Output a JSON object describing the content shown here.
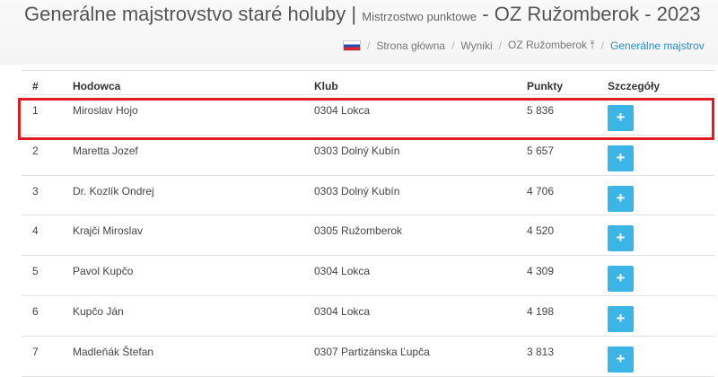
{
  "header": {
    "title": "Generálne majstrovstvo staré holuby",
    "separator": "|",
    "subtitle": "Mistrzostwo punktowe",
    "suffix": "- OZ Ružomberok - 2023"
  },
  "breadcrumb": {
    "items": [
      "Strona główna",
      "Wyniki",
      "OZ Ružomberok ⤒"
    ],
    "active": "Generálne majstrov",
    "sep": "/"
  },
  "table": {
    "columns": [
      "#",
      "Hodowca",
      "Klub",
      "Punkty",
      "Szczegóły"
    ],
    "button_label": "+",
    "rows": [
      {
        "n": "1",
        "name": "Miroslav Hojo",
        "club": "0304 Lokca",
        "points": "5 836"
      },
      {
        "n": "2",
        "name": "Maretta Jozef",
        "club": "0303 Dolný Kubín",
        "points": "5 657"
      },
      {
        "n": "3",
        "name": "Dr. Kozlík Ondrej",
        "club": "0303 Dolný Kubín",
        "points": "4 706"
      },
      {
        "n": "4",
        "name": "Krajči Miroslav",
        "club": "0305 Ružomberok",
        "points": "4 520"
      },
      {
        "n": "5",
        "name": "Pavol Kupčo",
        "club": "0304 Lokca",
        "points": "4 309"
      },
      {
        "n": "6",
        "name": "Kupčo Ján",
        "club": "0304 Lokca",
        "points": "4 198"
      },
      {
        "n": "7",
        "name": "Madleňák Štefan",
        "club": "0307 Partizánska Ľupča",
        "points": "3 813"
      }
    ]
  },
  "colors": {
    "button": "#3ab5e6",
    "highlight": "#e01b22",
    "link": "#2a8fd0"
  }
}
